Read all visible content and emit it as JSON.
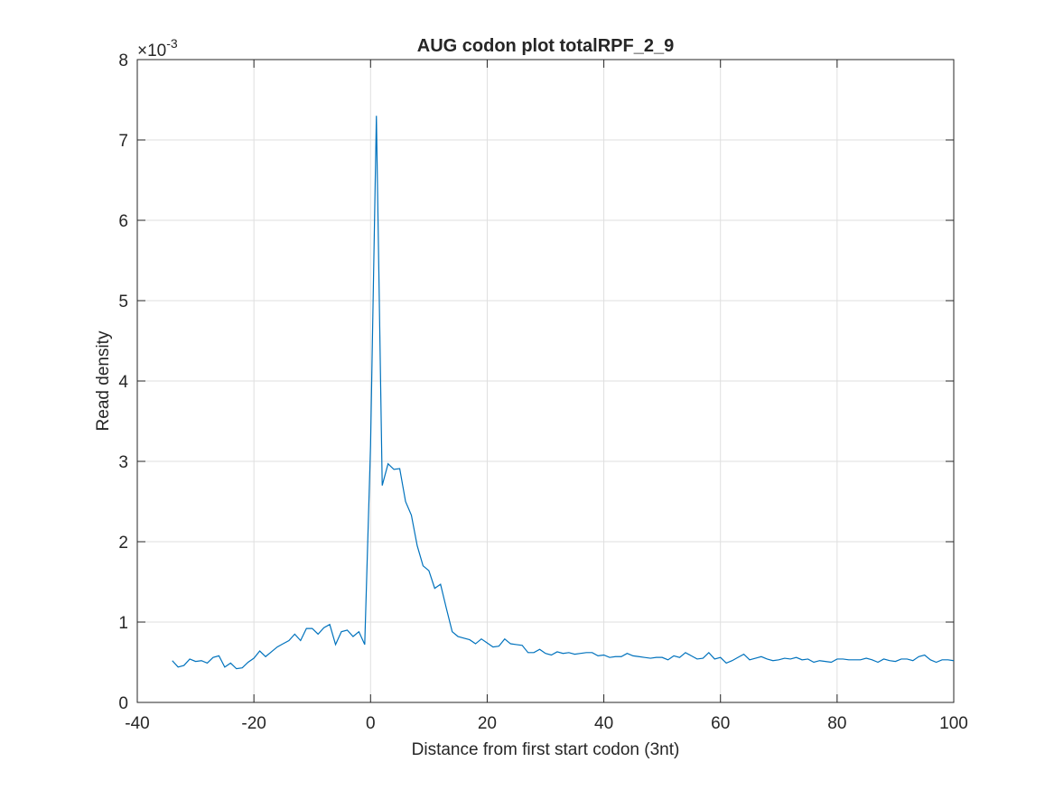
{
  "chart_data": {
    "type": "line",
    "title": "AUG codon plot totalRPF_2_9",
    "x_label": "Distance from first start codon (3nt)",
    "y_label": "Read density",
    "y_multiplier": {
      "base": "×10",
      "exponent": "-3"
    },
    "xlim": [
      -40,
      100
    ],
    "xticks": [
      -40,
      -20,
      0,
      20,
      40,
      60,
      80,
      100
    ],
    "ylim": [
      0,
      8
    ],
    "yticks": [
      0,
      1,
      2,
      3,
      4,
      5,
      6,
      7,
      8
    ],
    "grid": true,
    "x": [
      -34,
      -33,
      -32,
      -31,
      -30,
      -29,
      -28,
      -27,
      -26,
      -25,
      -24,
      -23,
      -22,
      -21,
      -20,
      -19,
      -18,
      -17,
      -16,
      -15,
      -14,
      -13,
      -12,
      -11,
      -10,
      -9,
      -8,
      -7,
      -6,
      -5,
      -4,
      -3,
      -2,
      -1,
      0,
      1,
      2,
      3,
      4,
      5,
      6,
      7,
      8,
      9,
      10,
      11,
      12,
      13,
      14,
      15,
      16,
      17,
      18,
      19,
      20,
      21,
      22,
      23,
      24,
      25,
      26,
      27,
      28,
      29,
      30,
      31,
      32,
      33,
      34,
      35,
      36,
      37,
      38,
      39,
      40,
      41,
      42,
      43,
      44,
      45,
      46,
      47,
      48,
      49,
      50,
      51,
      52,
      53,
      54,
      55,
      56,
      57,
      58,
      59,
      60,
      61,
      62,
      63,
      64,
      65,
      66,
      67,
      68,
      69,
      70,
      71,
      72,
      73,
      74,
      75,
      76,
      77,
      78,
      79,
      80,
      81,
      82,
      83,
      84,
      85,
      86,
      87,
      88,
      89,
      90,
      91,
      92,
      93,
      94,
      95,
      96,
      97,
      98,
      99,
      100
    ],
    "series": [
      {
        "color": "#0072bd",
        "values": [
          0.52,
          0.44,
          0.46,
          0.54,
          0.51,
          0.52,
          0.49,
          0.56,
          0.58,
          0.44,
          0.49,
          0.42,
          0.43,
          0.5,
          0.55,
          0.64,
          0.57,
          0.63,
          0.69,
          0.73,
          0.77,
          0.85,
          0.77,
          0.92,
          0.92,
          0.85,
          0.93,
          0.97,
          0.72,
          0.88,
          0.9,
          0.82,
          0.88,
          0.72,
          3.2,
          7.3,
          2.7,
          2.97,
          2.9,
          2.91,
          2.5,
          2.33,
          1.95,
          1.7,
          1.64,
          1.42,
          1.47,
          1.17,
          0.88,
          0.82,
          0.8,
          0.78,
          0.73,
          0.79,
          0.74,
          0.69,
          0.7,
          0.79,
          0.73,
          0.72,
          0.71,
          0.62,
          0.62,
          0.66,
          0.61,
          0.59,
          0.63,
          0.61,
          0.62,
          0.6,
          0.61,
          0.62,
          0.62,
          0.58,
          0.59,
          0.56,
          0.57,
          0.57,
          0.61,
          0.58,
          0.57,
          0.56,
          0.55,
          0.56,
          0.56,
          0.53,
          0.58,
          0.56,
          0.62,
          0.58,
          0.54,
          0.55,
          0.62,
          0.54,
          0.56,
          0.49,
          0.52,
          0.56,
          0.6,
          0.53,
          0.55,
          0.57,
          0.54,
          0.52,
          0.53,
          0.55,
          0.54,
          0.56,
          0.53,
          0.54,
          0.5,
          0.52,
          0.51,
          0.5,
          0.54,
          0.54,
          0.53,
          0.53,
          0.53,
          0.55,
          0.53,
          0.5,
          0.54,
          0.52,
          0.51,
          0.54,
          0.54,
          0.52,
          0.57,
          0.59,
          0.53,
          0.5,
          0.53,
          0.53,
          0.52
        ]
      }
    ]
  }
}
